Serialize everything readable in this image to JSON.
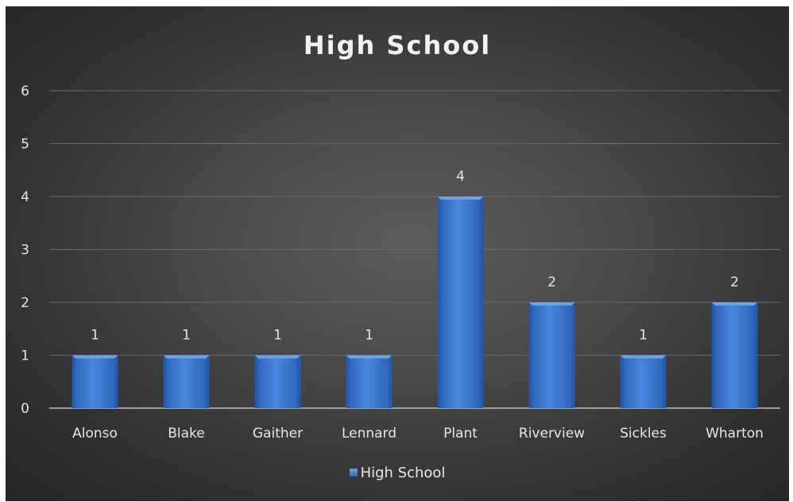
{
  "chart_data": {
    "type": "bar",
    "title": "High School",
    "categories": [
      "Alonso",
      "Blake",
      "Gaither",
      "Lennard",
      "Plant",
      "Riverview",
      "Sickles",
      "Wharton"
    ],
    "series": [
      {
        "name": "High School",
        "values": [
          1,
          1,
          1,
          1,
          4,
          2,
          1,
          2
        ]
      }
    ],
    "ylim": [
      0,
      6
    ],
    "yticks": [
      0,
      1,
      2,
      3,
      4,
      5,
      6
    ],
    "grid": true,
    "data_labels": true,
    "legend_position": "bottom",
    "colors": {
      "bar": "#3d7ad6",
      "bar_light": "#6fa0e0",
      "bar_dark": "#245aab",
      "grid": "#6a6a6a",
      "text": "#e6e6e6"
    }
  }
}
